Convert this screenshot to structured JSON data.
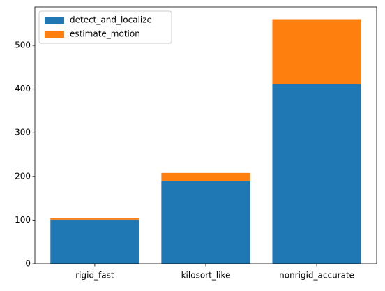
{
  "chart_data": {
    "type": "stacked_bar",
    "categories": [
      "rigid_fast",
      "kilosort_like",
      "nonrigid_accurate"
    ],
    "series": [
      {
        "name": "detect_and_localize",
        "color": "#1f77b4",
        "values": [
          101,
          189,
          412
        ]
      },
      {
        "name": "estimate_motion",
        "color": "#ff7f0e",
        "values": [
          3,
          19,
          148
        ]
      }
    ],
    "ylim": [
      0,
      588
    ],
    "yticks": [
      0,
      100,
      200,
      300,
      400,
      500
    ],
    "legend": "upper left"
  }
}
